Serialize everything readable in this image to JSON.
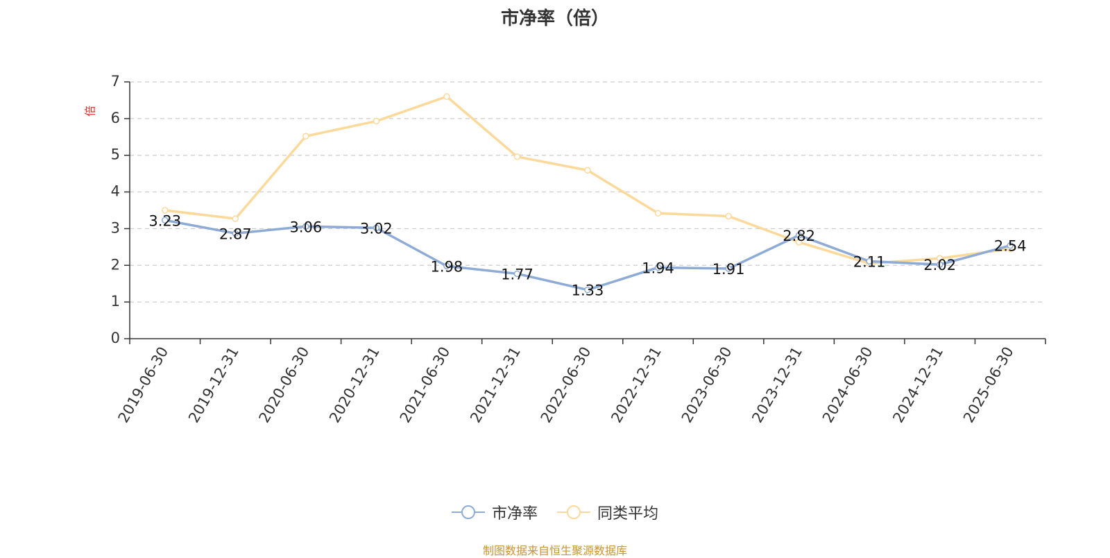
{
  "chart_data": {
    "type": "line",
    "title": "市净率（倍）",
    "ylabel": "倍",
    "xlabel": "",
    "categories": [
      "2019-06-30",
      "2019-12-31",
      "2020-06-30",
      "2020-12-31",
      "2021-06-30",
      "2021-12-31",
      "2022-06-30",
      "2022-12-31",
      "2023-06-30",
      "2023-12-31",
      "2024-06-30",
      "2024-12-31",
      "2025-06-30"
    ],
    "ylim": [
      0,
      7
    ],
    "yticks": [
      "0",
      "1",
      "2",
      "3",
      "4",
      "5",
      "6",
      "7"
    ],
    "grid": true,
    "legend_position": "bottom",
    "series": [
      {
        "name": "市净率",
        "color": "#8eabd6",
        "values": [
          3.23,
          2.87,
          3.06,
          3.02,
          1.98,
          1.77,
          1.33,
          1.94,
          1.91,
          2.82,
          2.11,
          2.02,
          2.54
        ],
        "labels": [
          "3.23",
          "2.87",
          "3.06",
          "3.02",
          "1.98",
          "1.77",
          "1.33",
          "1.94",
          "1.91",
          "2.82",
          "2.11",
          "2.02",
          "2.54"
        ]
      },
      {
        "name": "同类平均",
        "color": "#fbd99b",
        "values": [
          3.5,
          3.27,
          5.52,
          5.93,
          6.6,
          4.96,
          4.59,
          3.42,
          3.34,
          2.63,
          2.05,
          2.19,
          2.45
        ]
      }
    ]
  },
  "source_note": "制图数据来自恒生聚源数据库"
}
